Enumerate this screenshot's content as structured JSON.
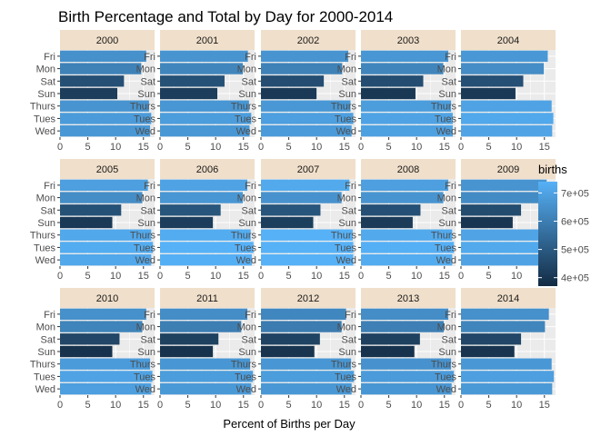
{
  "chart_data": {
    "type": "bar",
    "orientation": "horizontal",
    "faceted": true,
    "title": "Birth Percentage and Total by Day for 2000-2014",
    "xlabel": "Percent of Births per Day",
    "ylabel": "",
    "xlim": [
      0,
      17
    ],
    "x_ticks": [
      0,
      5,
      10,
      15
    ],
    "grid": true,
    "categories": [
      "Fri",
      "Mon",
      "Sat",
      "Sun",
      "Thurs",
      "Tues",
      "Wed"
    ],
    "fill_variable": "births",
    "legend": {
      "title": "births",
      "placement": "right",
      "ticks": [
        "4e+05",
        "5e+05",
        "6e+05",
        "7e+05"
      ],
      "tick_values": [
        400000,
        500000,
        600000,
        700000
      ],
      "range": [
        370000,
        740000
      ],
      "low_color": "#132B43",
      "high_color": "#56B1F7"
    },
    "colors": {
      "panel_background": "#ebebeb",
      "grid_major": "#ffffff",
      "strip_background": "#f0dfca"
    },
    "panels": [
      {
        "year": "2000",
        "percent": [
          15.5,
          14.6,
          11.5,
          10.3,
          16.0,
          16.4,
          16.2
        ],
        "births": [
          650000,
          610000,
          470000,
          420000,
          660000,
          680000,
          670000
        ]
      },
      {
        "year": "2001",
        "percent": [
          15.8,
          14.9,
          11.6,
          10.3,
          16.0,
          16.4,
          16.1
        ],
        "births": [
          660000,
          620000,
          475000,
          420000,
          665000,
          685000,
          670000
        ]
      },
      {
        "year": "2002",
        "percent": [
          15.7,
          14.6,
          11.3,
          10.0,
          16.1,
          16.6,
          16.3
        ],
        "births": [
          660000,
          610000,
          465000,
          410000,
          670000,
          690000,
          680000
        ]
      },
      {
        "year": "2003",
        "percent": [
          15.7,
          14.8,
          11.2,
          9.8,
          16.2,
          16.5,
          16.5
        ],
        "births": [
          665000,
          620000,
          465000,
          405000,
          685000,
          700000,
          695000
        ]
      },
      {
        "year": "2004",
        "percent": [
          15.6,
          14.9,
          11.2,
          9.8,
          16.3,
          16.6,
          16.4
        ],
        "births": [
          670000,
          640000,
          470000,
          410000,
          700000,
          715000,
          705000
        ]
      },
      {
        "year": "2005",
        "percent": [
          15.8,
          14.8,
          11.0,
          9.4,
          16.4,
          16.7,
          16.4
        ],
        "births": [
          690000,
          640000,
          475000,
          410000,
          715000,
          725000,
          715000
        ]
      },
      {
        "year": "2006",
        "percent": [
          15.7,
          14.9,
          10.9,
          9.5,
          16.3,
          16.8,
          16.5
        ],
        "births": [
          700000,
          665000,
          485000,
          420000,
          725000,
          745000,
          735000
        ]
      },
      {
        "year": "2007",
        "percent": [
          15.9,
          14.5,
          10.7,
          9.4,
          16.5,
          16.6,
          16.6
        ],
        "births": [
          720000,
          655000,
          485000,
          425000,
          745000,
          750000,
          750000
        ]
      },
      {
        "year": "2008",
        "percent": [
          15.7,
          14.8,
          10.7,
          9.3,
          16.4,
          16.7,
          16.4
        ],
        "births": [
          690000,
          660000,
          470000,
          415000,
          720000,
          735000,
          725000
        ]
      },
      {
        "year": "2009",
        "percent": [
          15.4,
          14.8,
          10.8,
          9.3,
          16.5,
          16.9,
          16.4
        ],
        "births": [
          660000,
          635000,
          460000,
          400000,
          705000,
          720000,
          700000
        ]
      },
      {
        "year": "2010",
        "percent": [
          15.5,
          14.8,
          10.7,
          9.4,
          16.2,
          16.6,
          16.4
        ],
        "births": [
          650000,
          615000,
          445000,
          390000,
          680000,
          700000,
          690000
        ]
      },
      {
        "year": "2011",
        "percent": [
          15.7,
          14.6,
          10.5,
          9.5,
          16.2,
          16.7,
          16.4
        ],
        "births": [
          640000,
          600000,
          430000,
          390000,
          665000,
          685000,
          675000
        ]
      },
      {
        "year": "2012",
        "percent": [
          15.3,
          14.5,
          10.6,
          9.6,
          16.2,
          16.7,
          16.3
        ],
        "births": [
          625000,
          595000,
          435000,
          395000,
          665000,
          685000,
          670000
        ]
      },
      {
        "year": "2013",
        "percent": [
          15.7,
          14.9,
          10.6,
          9.6,
          16.2,
          16.7,
          16.3
        ],
        "births": [
          640000,
          605000,
          430000,
          390000,
          655000,
          680000,
          665000
        ]
      },
      {
        "year": "2014",
        "percent": [
          15.8,
          15.1,
          10.8,
          9.6,
          16.3,
          16.7,
          16.4
        ],
        "births": [
          650000,
          620000,
          445000,
          395000,
          670000,
          690000,
          675000
        ]
      }
    ]
  }
}
